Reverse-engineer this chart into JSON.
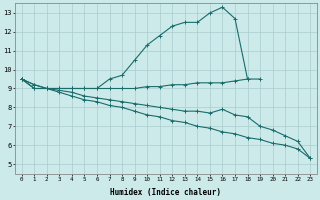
{
  "xlabel": "Humidex (Indice chaleur)",
  "background_color": "#cceaea",
  "grid_color": "#aacccc",
  "line_color": "#1a6b6b",
  "xlim": [
    -0.5,
    23.5
  ],
  "ylim": [
    4.5,
    13.5
  ],
  "xticks": [
    0,
    1,
    2,
    3,
    4,
    5,
    6,
    7,
    8,
    9,
    10,
    11,
    12,
    13,
    14,
    15,
    16,
    17,
    18,
    19,
    20,
    21,
    22,
    23
  ],
  "yticks": [
    5,
    6,
    7,
    8,
    9,
    10,
    11,
    12,
    13
  ],
  "line1_x": [
    0,
    1,
    2,
    3,
    4,
    5,
    6,
    7,
    8,
    9,
    10,
    11,
    12,
    13,
    14,
    15,
    16,
    17,
    18
  ],
  "line1_y": [
    9.5,
    9.0,
    9.0,
    9.0,
    9.0,
    9.0,
    9.0,
    9.5,
    9.7,
    10.5,
    11.3,
    11.8,
    12.3,
    12.5,
    12.5,
    13.0,
    13.3,
    12.7,
    9.5
  ],
  "line2_x": [
    0,
    1,
    2,
    3,
    4,
    5,
    6,
    7,
    8,
    9,
    10,
    11,
    12,
    13,
    14,
    15,
    16,
    17,
    18,
    19
  ],
  "line2_y": [
    9.5,
    9.0,
    9.0,
    9.0,
    9.0,
    9.0,
    9.0,
    9.0,
    9.0,
    9.0,
    9.1,
    9.1,
    9.2,
    9.2,
    9.3,
    9.3,
    9.3,
    9.4,
    9.5,
    9.5
  ],
  "line3_x": [
    0,
    1,
    2,
    3,
    4,
    5,
    6,
    7,
    8,
    9,
    10,
    11,
    12,
    13,
    14,
    15,
    16,
    17,
    18,
    19,
    20,
    21,
    22,
    23
  ],
  "line3_y": [
    9.5,
    9.2,
    9.0,
    8.9,
    8.8,
    8.6,
    8.5,
    8.4,
    8.3,
    8.2,
    8.1,
    8.0,
    7.9,
    7.8,
    7.8,
    7.7,
    7.9,
    7.6,
    7.5,
    7.0,
    6.8,
    6.5,
    6.2,
    5.3
  ],
  "line4_x": [
    0,
    1,
    2,
    3,
    4,
    5,
    6,
    7,
    8,
    9,
    10,
    11,
    12,
    13,
    14,
    15,
    16,
    17,
    18,
    19,
    20,
    21,
    22,
    23
  ],
  "line4_y": [
    9.5,
    9.2,
    9.0,
    8.8,
    8.6,
    8.4,
    8.3,
    8.1,
    8.0,
    7.8,
    7.6,
    7.5,
    7.3,
    7.2,
    7.0,
    6.9,
    6.7,
    6.6,
    6.4,
    6.3,
    6.1,
    6.0,
    5.8,
    5.3
  ]
}
